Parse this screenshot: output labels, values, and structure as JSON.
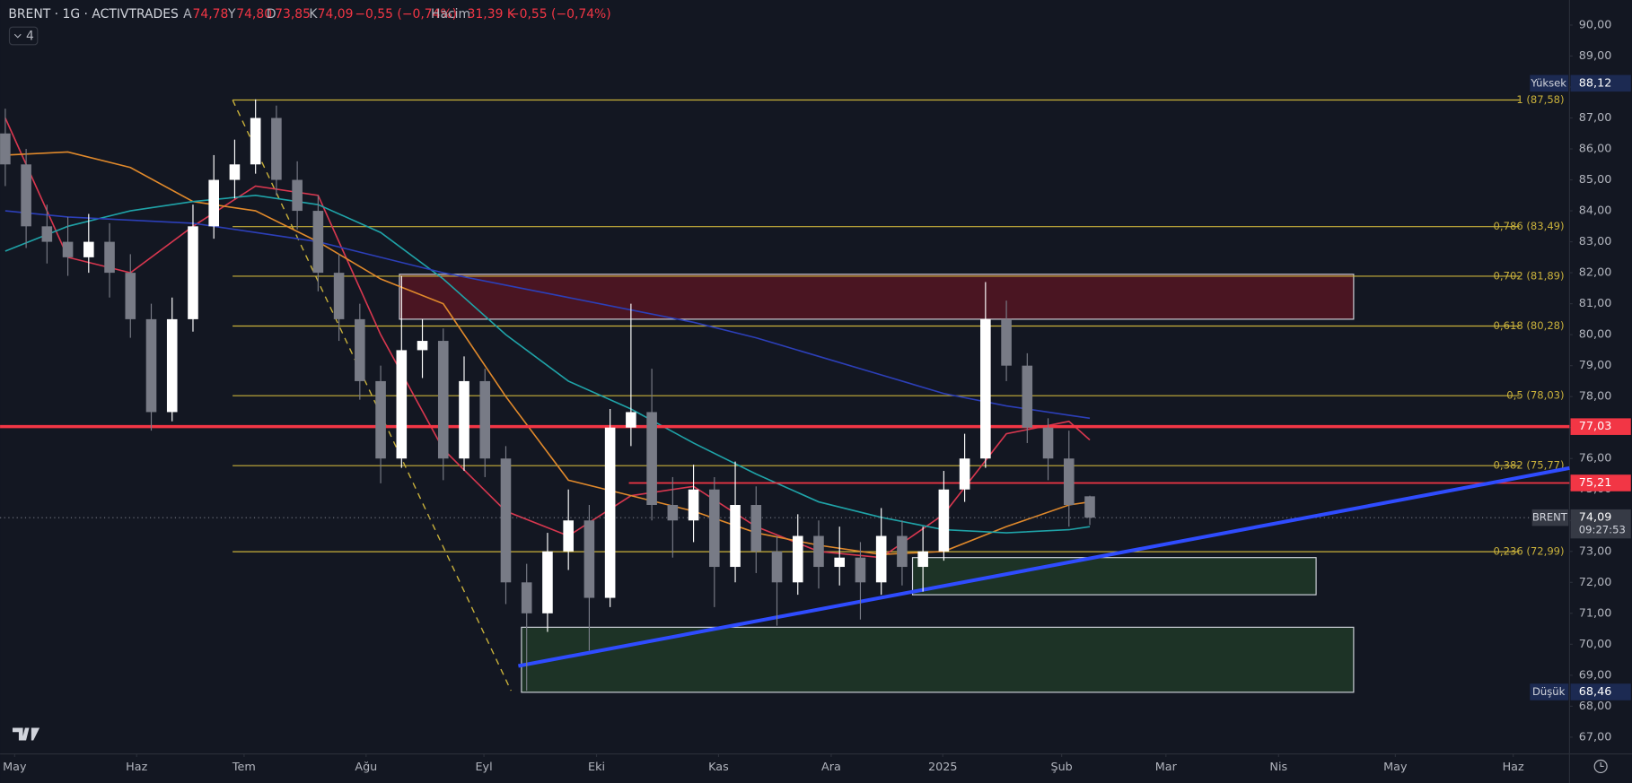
{
  "header": {
    "symbol": "BRENT · 1G · ACTIVTRADES",
    "open_label": "A",
    "open": "74,78",
    "high_label": "Y",
    "high": "74,80",
    "low_label": "D",
    "low": "73,85",
    "close_label": "K",
    "close": "74,09",
    "change": "−0,55 (−0,74%)",
    "volume_label": "Hacim",
    "volume": "31,39 K",
    "volume_change": "−0,55 (−0,74%)",
    "indicator_count": "4"
  },
  "chart_data": {
    "type": "candlestick",
    "open": [
      86.5,
      85.5,
      83.5,
      83,
      82.5,
      83,
      82,
      80.5,
      77.5,
      80.5,
      83.5,
      85,
      85.5,
      87,
      85,
      84,
      82,
      80.5,
      78.5,
      76,
      79.5,
      79.8,
      76,
      78.5,
      76,
      72,
      71,
      73,
      74,
      71.5,
      77,
      77.5,
      74.5,
      74,
      75,
      72.5,
      74.5,
      73,
      72,
      73.5,
      72.5,
      72.8,
      72,
      73.5,
      72.5,
      73,
      75,
      76,
      80.5,
      79,
      77,
      76,
      74.78
    ],
    "high": [
      87.3,
      86,
      84.2,
      83.8,
      83.9,
      83.6,
      82.6,
      81,
      81.2,
      84.2,
      85.8,
      86.3,
      87.6,
      87.4,
      85.6,
      84.5,
      82.6,
      81,
      79,
      81.9,
      80.5,
      80.2,
      79.3,
      78.9,
      76.4,
      72.6,
      73.6,
      75,
      74.5,
      77.6,
      81,
      78.9,
      75.4,
      75.8,
      75.4,
      75.9,
      75.1,
      73.5,
      74.2,
      74,
      73.8,
      73.3,
      74.4,
      74,
      73.8,
      75.6,
      76.8,
      81.7,
      81.1,
      79.4,
      77.3,
      76.9,
      74.8
    ],
    "low": [
      84.8,
      82.8,
      82.3,
      81.9,
      82,
      81.2,
      79.9,
      76.9,
      77.2,
      80.1,
      83.1,
      84.4,
      85.2,
      84.5,
      83.4,
      81.4,
      79.8,
      77.9,
      75.2,
      75.7,
      78.6,
      75.3,
      75.6,
      75.4,
      71.3,
      68.5,
      70.4,
      72.4,
      69.8,
      71.2,
      76.4,
      74,
      72.8,
      73.3,
      71.2,
      72,
      72.3,
      70.6,
      71.6,
      71.8,
      71.9,
      70.8,
      71.6,
      71.9,
      71.7,
      72.7,
      74.6,
      75.7,
      78.5,
      76.5,
      75.3,
      73.8,
      73.85
    ],
    "close": [
      85.5,
      83.5,
      83,
      82.5,
      83,
      82,
      80.5,
      77.5,
      80.5,
      83.5,
      85,
      85.5,
      87,
      85,
      84,
      82,
      80.5,
      78.5,
      76,
      79.5,
      79.8,
      76,
      78.5,
      76,
      72,
      71,
      73,
      74,
      71.5,
      77,
      77.5,
      74.5,
      74,
      75,
      72.5,
      74.5,
      73,
      72,
      73.5,
      72.5,
      72.8,
      72,
      73.5,
      72.5,
      73,
      75,
      76,
      80.5,
      79,
      77,
      76,
      74.5,
      74.09
    ],
    "up_color": "#ffffff",
    "down_color": "#787b86",
    "xlim": [
      -0.25,
      75
    ],
    "xticks": [
      {
        "value": 0.45,
        "label": "May"
      },
      {
        "value": 6.3,
        "label": "Haz"
      },
      {
        "value": 11.45,
        "label": "Tem"
      },
      {
        "value": 17.3,
        "label": "Ağu"
      },
      {
        "value": 22.95,
        "label": "Eyl"
      },
      {
        "value": 28.35,
        "label": "Eki"
      },
      {
        "value": 34.2,
        "label": "Kas"
      },
      {
        "value": 39.6,
        "label": "Ara"
      },
      {
        "value": 44.95,
        "label": "2025"
      },
      {
        "value": 50.65,
        "label": "Şub"
      },
      {
        "value": 55.65,
        "label": "Mar"
      },
      {
        "value": 61.05,
        "label": "Nis"
      },
      {
        "value": 66.65,
        "label": "May"
      },
      {
        "value": 72.3,
        "label": "Haz"
      }
    ],
    "ylim": [
      66.46,
      90.81
    ],
    "yticks": [
      {
        "value": 67,
        "label": "67,00"
      },
      {
        "value": 68,
        "label": "68,00"
      },
      {
        "value": 69,
        "label": "69,00"
      },
      {
        "value": 70,
        "label": "70,00"
      },
      {
        "value": 71,
        "label": "71,00"
      },
      {
        "value": 72,
        "label": "72,00"
      },
      {
        "value": 73,
        "label": "73,00"
      },
      {
        "value": 74,
        "label": "74,00"
      },
      {
        "value": 75,
        "label": "75,00"
      },
      {
        "value": 76,
        "label": "76,00"
      },
      {
        "value": 77,
        "label": "77,00"
      },
      {
        "value": 78,
        "label": "78,00"
      },
      {
        "value": 79,
        "label": "79,00"
      },
      {
        "value": 80,
        "label": "80,00"
      },
      {
        "value": 81,
        "label": "81,00"
      },
      {
        "value": 82,
        "label": "82,00"
      },
      {
        "value": 83,
        "label": "83,00"
      },
      {
        "value": 84,
        "label": "84,00"
      },
      {
        "value": 85,
        "label": "85,00"
      },
      {
        "value": 86,
        "label": "86,00"
      },
      {
        "value": 87,
        "label": "87,00"
      },
      {
        "value": 88,
        "label": "88,00"
      },
      {
        "value": 89,
        "label": "89,00"
      },
      {
        "value": 90,
        "label": "90,00"
      }
    ],
    "moving_averages": [
      {
        "color": "#d8374f",
        "x": [
          0,
          3,
          6,
          9,
          12,
          15,
          18,
          21,
          24,
          27,
          30,
          33,
          36,
          39,
          42,
          45,
          48,
          51,
          52
        ],
        "values": [
          87,
          82.5,
          82,
          83.5,
          84.8,
          84.5,
          80,
          76.3,
          74.3,
          73.5,
          74.8,
          75.1,
          73.8,
          73,
          72.8,
          74.2,
          76.8,
          77.2,
          76.6
        ]
      },
      {
        "color": "#e0892b",
        "x": [
          0,
          3,
          6,
          9,
          12,
          15,
          18,
          21,
          24,
          27,
          30,
          33,
          36,
          39,
          42,
          45,
          48,
          51,
          52
        ],
        "values": [
          85.8,
          85.9,
          85.4,
          84.3,
          84,
          83,
          81.8,
          81,
          78,
          75.3,
          74.8,
          74.3,
          73.6,
          73.2,
          72.9,
          73,
          73.8,
          74.5,
          74.6
        ]
      },
      {
        "color": "#1fa3a8",
        "x": [
          0,
          3,
          6,
          9,
          12,
          15,
          18,
          21,
          24,
          27,
          30,
          33,
          36,
          39,
          42,
          45,
          48,
          51,
          52
        ],
        "values": [
          82.7,
          83.5,
          84,
          84.3,
          84.5,
          84.2,
          83.3,
          81.8,
          80,
          78.5,
          77.6,
          76.5,
          75.5,
          74.6,
          74.1,
          73.7,
          73.6,
          73.7,
          73.8
        ]
      },
      {
        "color": "#2c3fb8",
        "x": [
          0,
          3,
          6,
          9,
          12,
          15,
          18,
          21,
          24,
          27,
          30,
          33,
          36,
          39,
          42,
          45,
          48,
          51,
          52
        ],
        "values": [
          84,
          83.8,
          83.7,
          83.6,
          83.3,
          83,
          82.5,
          82,
          81.6,
          81.2,
          80.8,
          80.4,
          79.9,
          79.3,
          78.7,
          78.1,
          77.7,
          77.4,
          77.3
        ]
      }
    ],
    "levels": [
      {
        "label": "1 (87,58)",
        "value": 87.58
      },
      {
        "label": "0,786 (83,49)",
        "value": 83.49
      },
      {
        "label": "0,702 (81,89)",
        "value": 81.89
      },
      {
        "label": "0,618 (80,28)",
        "value": 80.28
      },
      {
        "label": "0,5 (78,03)",
        "value": 78.03
      },
      {
        "label": "0,382 (75,77)",
        "value": 75.77
      },
      {
        "label": "0,236 (72,99)",
        "value": 72.99
      }
    ],
    "levels_x": [
      10.9,
      72.6
    ],
    "levels_color": "#c9b13b",
    "fib_trend": {
      "x": [
        10.9,
        24.25
      ],
      "values": [
        87.58,
        68.5
      ]
    },
    "price_lines": [
      {
        "value": 77.03,
        "label": "77,03",
        "x_start": -0.25,
        "line_width": 3
      },
      {
        "value": 75.21,
        "label": "75,21",
        "x_start": 29.9,
        "line_width": 1.5
      }
    ],
    "price_line_color": "#f23645",
    "zones": [
      {
        "x": [
          18.9,
          64.65
        ],
        "y": [
          80.5,
          81.95
        ],
        "color": "#4a1522"
      },
      {
        "x": [
          43.5,
          62.85
        ],
        "y": [
          71.6,
          72.8
        ],
        "color": "#1d3326"
      },
      {
        "x": [
          24.75,
          64.65
        ],
        "y": [
          68.45,
          70.55
        ],
        "color": "#1d3326"
      }
    ],
    "trendline": {
      "x": [
        24.6,
        75
      ],
      "values": [
        69.3,
        75.69
      ],
      "color": "#2f4cff"
    },
    "current": {
      "name": "BRENT",
      "value": 74.09,
      "label": "74,09",
      "countdown": "09:27:53"
    },
    "high_marker": {
      "name": "Yüksek",
      "value": 88.12,
      "label": "88,12"
    },
    "low_marker": {
      "name": "Düşük",
      "value": 68.46,
      "label": "68,46"
    }
  }
}
